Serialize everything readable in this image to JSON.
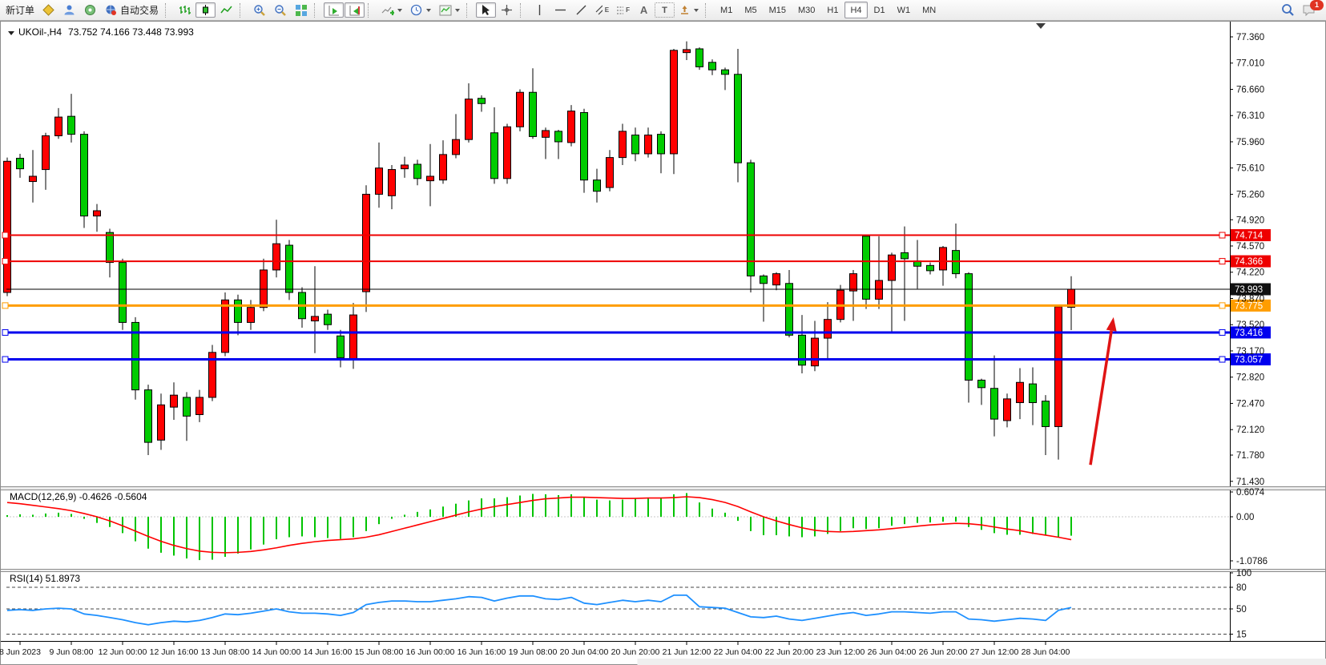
{
  "toolbar": {
    "new_order_label": "新订单",
    "auto_trading_label": "自动交易",
    "timeframes": [
      "M1",
      "M5",
      "M15",
      "M30",
      "H1",
      "H4",
      "D1",
      "W1",
      "MN"
    ],
    "active_timeframe": "H4",
    "notification_count": "1",
    "tool_glyphs": {
      "channel": "E",
      "fibonacci": "F",
      "text": "A",
      "label": "T"
    }
  },
  "chart": {
    "symbol_period": "UKOil-,H4",
    "ohlc": "73.752 74.166 73.448 73.993"
  },
  "chart_data": {
    "type": "candlestick",
    "title": "UKOil-,H4",
    "bull_color": "#ff0000",
    "bear_color": "#00cc00",
    "wick_color": "#000000",
    "price_range": [
      71.43,
      77.55
    ],
    "price_ticks": [
      "77.360",
      "77.010",
      "76.660",
      "76.310",
      "75.960",
      "75.610",
      "75.260",
      "74.920",
      "74.570",
      "74.220",
      "73.870",
      "73.520",
      "73.170",
      "72.820",
      "72.470",
      "72.120",
      "71.780",
      "71.430"
    ],
    "date_tick_indices": [
      1,
      5,
      9,
      13,
      17,
      21,
      25,
      29,
      33,
      37,
      41,
      45,
      49,
      53,
      57,
      61,
      65,
      69,
      73,
      77,
      81
    ],
    "date_tick_labels": [
      "8 Jun 2023",
      "9 Jun 08:00",
      "12 Jun 00:00",
      "12 Jun 16:00",
      "13 Jun 08:00",
      "14 Jun 00:00",
      "14 Jun 16:00",
      "15 Jun 08:00",
      "16 Jun 00:00",
      "16 Jun 16:00",
      "19 Jun 08:00",
      "20 Jun 04:00",
      "20 Jun 20:00",
      "21 Jun 12:00",
      "22 Jun 04:00",
      "22 Jun 20:00",
      "23 Jun 12:00",
      "26 Jun 04:00",
      "26 Jun 20:00",
      "27 Jun 12:00",
      "28 Jun 04:00"
    ],
    "candles": [
      [
        73.95,
        75.75,
        73.9,
        75.7
      ],
      [
        75.74,
        75.8,
        75.48,
        75.6
      ],
      [
        75.43,
        75.85,
        75.15,
        75.5
      ],
      [
        75.59,
        76.08,
        75.32,
        76.04
      ],
      [
        76.04,
        76.41,
        76.0,
        76.29
      ],
      [
        76.3,
        76.6,
        75.95,
        76.06
      ],
      [
        76.06,
        76.1,
        74.81,
        74.97
      ],
      [
        74.97,
        75.13,
        74.76,
        75.04
      ],
      [
        74.75,
        74.8,
        74.15,
        74.35
      ],
      [
        74.35,
        74.4,
        73.45,
        73.55
      ],
      [
        73.55,
        73.62,
        72.52,
        72.65
      ],
      [
        72.65,
        72.72,
        71.78,
        71.95
      ],
      [
        71.98,
        72.6,
        71.85,
        72.45
      ],
      [
        72.42,
        72.75,
        72.25,
        72.58
      ],
      [
        72.55,
        72.62,
        71.97,
        72.3
      ],
      [
        72.32,
        72.65,
        72.22,
        72.55
      ],
      [
        72.55,
        73.25,
        72.5,
        73.15
      ],
      [
        73.15,
        73.95,
        73.1,
        73.85
      ],
      [
        73.85,
        73.92,
        73.38,
        73.55
      ],
      [
        73.55,
        73.85,
        73.45,
        73.75
      ],
      [
        73.75,
        74.4,
        73.7,
        74.25
      ],
      [
        74.25,
        74.92,
        74.15,
        74.6
      ],
      [
        74.58,
        74.65,
        73.85,
        73.95
      ],
      [
        73.95,
        74.02,
        73.48,
        73.6
      ],
      [
        73.57,
        74.3,
        73.14,
        73.63
      ],
      [
        73.66,
        73.72,
        73.45,
        73.52
      ],
      [
        73.37,
        73.45,
        72.95,
        73.08
      ],
      [
        73.05,
        73.81,
        72.93,
        73.65
      ],
      [
        73.96,
        75.38,
        73.69,
        75.26
      ],
      [
        75.26,
        75.95,
        75.08,
        75.61
      ],
      [
        75.24,
        75.65,
        75.06,
        75.59
      ],
      [
        75.6,
        75.76,
        75.48,
        75.65
      ],
      [
        75.66,
        75.72,
        75.38,
        75.47
      ],
      [
        75.44,
        75.93,
        75.1,
        75.5
      ],
      [
        75.45,
        75.98,
        75.4,
        75.79
      ],
      [
        75.79,
        76.33,
        75.74,
        75.99
      ],
      [
        75.99,
        76.74,
        75.95,
        76.53
      ],
      [
        76.54,
        76.58,
        76.36,
        76.47
      ],
      [
        76.08,
        76.42,
        75.4,
        75.47
      ],
      [
        75.47,
        76.2,
        75.4,
        76.16
      ],
      [
        76.16,
        76.66,
        76.1,
        76.62
      ],
      [
        76.62,
        76.94,
        76.0,
        76.03
      ],
      [
        76.02,
        76.15,
        75.73,
        76.11
      ],
      [
        76.1,
        76.12,
        75.73,
        75.96
      ],
      [
        75.95,
        76.45,
        75.9,
        76.37
      ],
      [
        76.35,
        76.4,
        75.28,
        75.45
      ],
      [
        75.45,
        75.6,
        75.15,
        75.3
      ],
      [
        75.35,
        75.85,
        75.3,
        75.75
      ],
      [
        75.75,
        76.2,
        75.65,
        76.1
      ],
      [
        76.05,
        76.15,
        75.7,
        75.8
      ],
      [
        75.8,
        76.15,
        75.75,
        76.05
      ],
      [
        76.06,
        76.1,
        75.54,
        75.8
      ],
      [
        75.8,
        77.2,
        75.53,
        77.18
      ],
      [
        77.15,
        77.3,
        77.05,
        77.19
      ],
      [
        77.2,
        77.22,
        76.92,
        76.96
      ],
      [
        77.02,
        77.06,
        76.85,
        76.92
      ],
      [
        76.92,
        76.95,
        76.65,
        76.86
      ],
      [
        76.86,
        77.2,
        75.42,
        75.68
      ],
      [
        75.68,
        75.72,
        73.95,
        74.17
      ],
      [
        74.17,
        74.19,
        73.56,
        74.07
      ],
      [
        74.05,
        74.22,
        73.98,
        74.2
      ],
      [
        74.07,
        74.25,
        73.35,
        73.38
      ],
      [
        73.38,
        73.65,
        72.87,
        72.98
      ],
      [
        72.97,
        73.57,
        72.9,
        73.34
      ],
      [
        73.34,
        73.82,
        73.06,
        73.59
      ],
      [
        73.59,
        74.05,
        73.55,
        73.98
      ],
      [
        73.97,
        74.25,
        73.57,
        74.2
      ],
      [
        74.7,
        74.72,
        73.73,
        73.86
      ],
      [
        73.86,
        74.7,
        73.73,
        74.11
      ],
      [
        74.11,
        74.48,
        73.41,
        74.45
      ],
      [
        74.48,
        74.83,
        73.57,
        74.4
      ],
      [
        74.37,
        74.65,
        74.0,
        74.3
      ],
      [
        74.31,
        74.35,
        74.19,
        74.24
      ],
      [
        74.25,
        74.57,
        74.04,
        74.55
      ],
      [
        74.51,
        74.87,
        74.14,
        74.2
      ],
      [
        74.2,
        74.22,
        72.48,
        72.78
      ],
      [
        72.78,
        72.8,
        72.45,
        72.68
      ],
      [
        72.67,
        73.11,
        72.03,
        72.26
      ],
      [
        72.24,
        72.6,
        72.15,
        72.53
      ],
      [
        72.48,
        72.94,
        72.26,
        72.75
      ],
      [
        72.73,
        72.95,
        72.18,
        72.48
      ],
      [
        72.5,
        72.58,
        71.78,
        72.16
      ],
      [
        72.16,
        73.78,
        71.72,
        73.76
      ],
      [
        73.752,
        74.166,
        73.448,
        73.993
      ]
    ],
    "hlines": [
      {
        "name": "resistance-line-74714",
        "price": 74.714,
        "color": "#ee0000",
        "width": 2,
        "label": "74.714",
        "label_bg": "#ee0000",
        "anchors": true
      },
      {
        "name": "resistance-line-74366",
        "price": 74.366,
        "color": "#ee0000",
        "width": 2,
        "label": "74.366",
        "label_bg": "#ee0000",
        "anchors": true
      },
      {
        "name": "current-price-line",
        "price": 73.993,
        "color": "#000000",
        "width": 1,
        "label": "73.993",
        "label_bg": "#111111",
        "anchors": false
      },
      {
        "name": "pivot-line-73775",
        "price": 73.775,
        "color": "#ff9d00",
        "width": 3,
        "label": "73.775",
        "label_bg": "#ff9d00",
        "anchors": true
      },
      {
        "name": "support-line-73416",
        "price": 73.416,
        "color": "#0000ee",
        "width": 3,
        "label": "73.416",
        "label_bg": "#0000ee",
        "anchors": true
      },
      {
        "name": "support-line-73057",
        "price": 73.057,
        "color": "#0000ee",
        "width": 3,
        "label": "73.057",
        "label_bg": "#0000ee",
        "anchors": true
      }
    ],
    "macd": {
      "label": "MACD(12,26,9) -0.4626 -0.5604",
      "ticks": [
        {
          "v": 0.6074,
          "label": "0.6074"
        },
        {
          "v": 0,
          "label": "0.00"
        },
        {
          "v": -1.0786,
          "label": "-1.0786"
        }
      ],
      "histogram_color": "#00c400",
      "signal_color": "#ff0000",
      "histogram": [
        0.04,
        0.06,
        0.05,
        0.08,
        0.1,
        0.07,
        -0.05,
        -0.15,
        -0.25,
        -0.4,
        -0.6,
        -0.78,
        -0.88,
        -0.95,
        -1.02,
        -1.06,
        -1.05,
        -0.98,
        -0.9,
        -0.8,
        -0.68,
        -0.55,
        -0.5,
        -0.48,
        -0.5,
        -0.52,
        -0.54,
        -0.5,
        -0.35,
        -0.18,
        -0.05,
        0.05,
        0.12,
        0.18,
        0.25,
        0.32,
        0.4,
        0.45,
        0.45,
        0.48,
        0.52,
        0.56,
        0.55,
        0.53,
        0.55,
        0.48,
        0.42,
        0.4,
        0.42,
        0.45,
        0.47,
        0.45,
        0.55,
        0.58,
        0.35,
        0.2,
        0.1,
        -0.1,
        -0.35,
        -0.45,
        -0.45,
        -0.48,
        -0.5,
        -0.48,
        -0.42,
        -0.35,
        -0.28,
        -0.3,
        -0.28,
        -0.22,
        -0.18,
        -0.15,
        -0.14,
        -0.12,
        -0.12,
        -0.25,
        -0.32,
        -0.4,
        -0.44,
        -0.44,
        -0.42,
        -0.45,
        -0.5,
        -0.4626
      ],
      "signal": [
        0.35,
        0.32,
        0.28,
        0.24,
        0.2,
        0.15,
        0.08,
        0.0,
        -0.1,
        -0.22,
        -0.35,
        -0.48,
        -0.6,
        -0.7,
        -0.78,
        -0.84,
        -0.87,
        -0.88,
        -0.87,
        -0.85,
        -0.81,
        -0.76,
        -0.7,
        -0.65,
        -0.61,
        -0.58,
        -0.56,
        -0.54,
        -0.5,
        -0.44,
        -0.36,
        -0.28,
        -0.2,
        -0.12,
        -0.04,
        0.04,
        0.12,
        0.19,
        0.25,
        0.3,
        0.35,
        0.4,
        0.44,
        0.46,
        0.48,
        0.48,
        0.47,
        0.46,
        0.45,
        0.45,
        0.46,
        0.46,
        0.47,
        0.49,
        0.47,
        0.42,
        0.35,
        0.25,
        0.12,
        0.0,
        -0.1,
        -0.19,
        -0.27,
        -0.33,
        -0.36,
        -0.37,
        -0.36,
        -0.34,
        -0.32,
        -0.29,
        -0.26,
        -0.23,
        -0.2,
        -0.18,
        -0.16,
        -0.17,
        -0.2,
        -0.25,
        -0.3,
        -0.34,
        -0.4,
        -0.45,
        -0.5,
        -0.5604
      ]
    },
    "rsi": {
      "label": "RSI(14) 51.8973",
      "line_color": "#1e90ff",
      "ticks": [
        {
          "v": 100,
          "label": "100"
        },
        {
          "v": 80,
          "label": "80"
        },
        {
          "v": 50,
          "label": "50"
        },
        {
          "v": 15,
          "label": "15"
        }
      ],
      "dashed_levels": [
        80,
        50,
        15
      ],
      "values": [
        48,
        49,
        48,
        50,
        51,
        50,
        43,
        41,
        38,
        35,
        31,
        28,
        31,
        33,
        32,
        34,
        38,
        43,
        42,
        44,
        47,
        50,
        46,
        44,
        44,
        43,
        41,
        45,
        56,
        59,
        61,
        61,
        60,
        60,
        62,
        64,
        67,
        66,
        61,
        65,
        68,
        68,
        64,
        63,
        66,
        58,
        56,
        59,
        62,
        60,
        62,
        60,
        69,
        69,
        53,
        52,
        51,
        45,
        39,
        38,
        40,
        36,
        34,
        37,
        40,
        43,
        45,
        41,
        43,
        46,
        46,
        45,
        44,
        46,
        46,
        36,
        35,
        33,
        35,
        37,
        36,
        34,
        48,
        51.9
      ]
    },
    "arrow": {
      "from_bar": 84.5,
      "from_price": 71.65,
      "to_bar": 86.3,
      "to_price": 73.62,
      "color": "#e01414"
    }
  }
}
